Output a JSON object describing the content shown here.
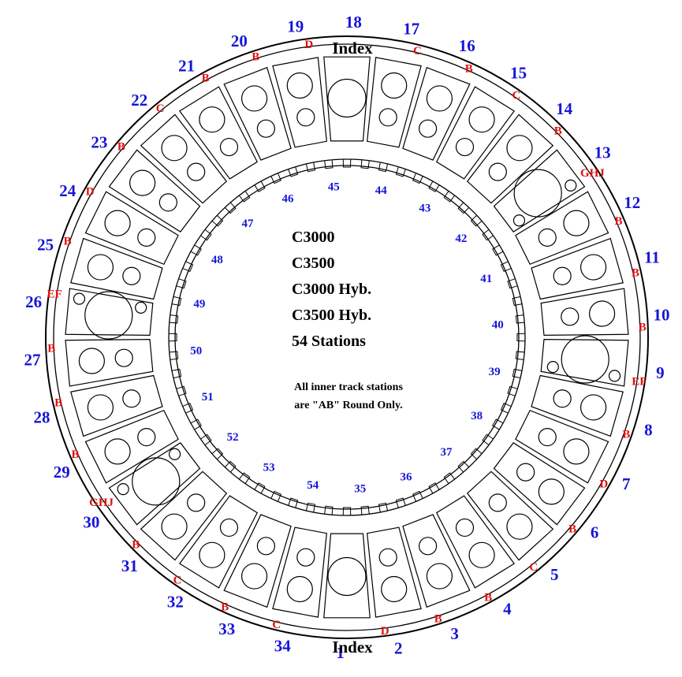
{
  "top_index_label": "Index",
  "bottom_index_label": "Index",
  "models": [
    "C3000",
    "C3500",
    "C3000 Hyb.",
    "C3500 Hyb.",
    "54 Stations"
  ],
  "note_lines": [
    "All inner track stations",
    "are \"AB\" Round Only."
  ],
  "outer_stations": [
    {
      "n": "1",
      "code": ""
    },
    {
      "n": "2",
      "code": "D"
    },
    {
      "n": "3",
      "code": "B"
    },
    {
      "n": "4",
      "code": "B"
    },
    {
      "n": "5",
      "code": "C"
    },
    {
      "n": "6",
      "code": "B"
    },
    {
      "n": "7",
      "code": "D"
    },
    {
      "n": "8",
      "code": "B"
    },
    {
      "n": "9",
      "code": "EF"
    },
    {
      "n": "10",
      "code": "B"
    },
    {
      "n": "11",
      "code": "B"
    },
    {
      "n": "12",
      "code": "B"
    },
    {
      "n": "13",
      "code": "GHJ"
    },
    {
      "n": "14",
      "code": "B"
    },
    {
      "n": "15",
      "code": "C"
    },
    {
      "n": "16",
      "code": "B"
    },
    {
      "n": "17",
      "code": "C"
    },
    {
      "n": "18",
      "code": ""
    },
    {
      "n": "19",
      "code": "D"
    },
    {
      "n": "20",
      "code": "B"
    },
    {
      "n": "21",
      "code": "B"
    },
    {
      "n": "22",
      "code": "C"
    },
    {
      "n": "23",
      "code": "B"
    },
    {
      "n": "24",
      "code": "D"
    },
    {
      "n": "25",
      "code": "B"
    },
    {
      "n": "26",
      "code": "EF"
    },
    {
      "n": "27",
      "code": "B"
    },
    {
      "n": "28",
      "code": "B"
    },
    {
      "n": "29",
      "code": "B"
    },
    {
      "n": "30",
      "code": "GHJ"
    },
    {
      "n": "31",
      "code": "B"
    },
    {
      "n": "32",
      "code": "C"
    },
    {
      "n": "33",
      "code": "B"
    },
    {
      "n": "34",
      "code": "C"
    }
  ],
  "inner_stations": [
    "35",
    "36",
    "37",
    "38",
    "39",
    "40",
    "41",
    "42",
    "43",
    "44",
    "45",
    "46",
    "47",
    "48",
    "49",
    "50",
    "51",
    "52",
    "53",
    "54"
  ]
}
